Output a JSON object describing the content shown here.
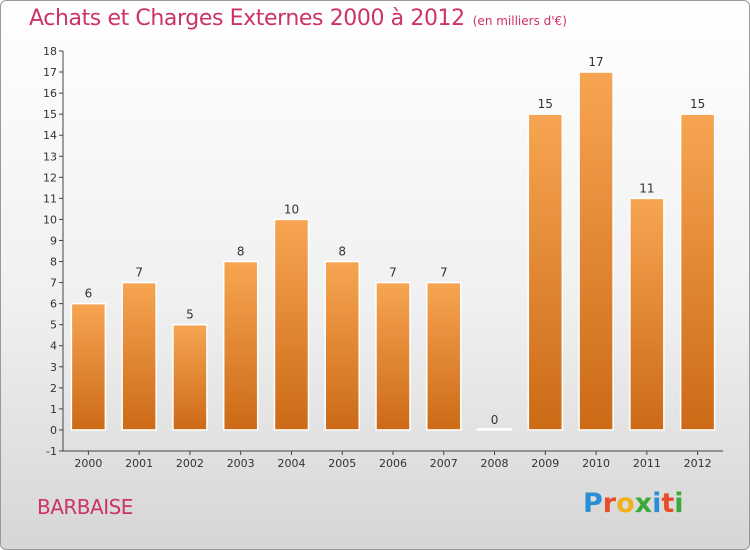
{
  "header": {
    "title": "Achats et Charges Externes 2000 à 2012",
    "unit": "(en milliers d'€)"
  },
  "footer": {
    "commune": "BARBAISE",
    "brand": "Proxiti"
  },
  "colors": {
    "title": "#cc3366",
    "bar_top": "#f7a552",
    "bar_bottom": "#cc6a16",
    "axis": "#444444"
  },
  "chart_data": {
    "type": "bar",
    "title": "Achats et Charges Externes 2000 à 2012",
    "subtitle": "(en milliers d'€)",
    "categories": [
      "2000",
      "2001",
      "2002",
      "2003",
      "2004",
      "2005",
      "2006",
      "2007",
      "2008",
      "2009",
      "2010",
      "2011",
      "2012"
    ],
    "values": [
      6,
      7,
      5,
      8,
      10,
      8,
      7,
      7,
      0,
      15,
      17,
      11,
      15
    ],
    "data_labels": [
      "6",
      "7",
      "5",
      "8",
      "10",
      "8",
      "7",
      "7",
      "0",
      "15",
      "17",
      "11",
      "15"
    ],
    "yticks": [
      -1,
      0,
      1,
      2,
      3,
      4,
      5,
      6,
      7,
      8,
      9,
      10,
      11,
      12,
      13,
      14,
      15,
      16,
      17,
      18
    ],
    "ylim": [
      -1,
      18
    ],
    "xlabel": "",
    "ylabel": "",
    "grid": false,
    "legend": "none"
  }
}
